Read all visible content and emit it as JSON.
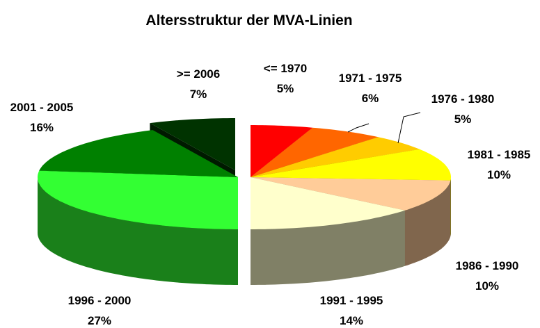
{
  "chart_data": {
    "type": "pie",
    "title": "Altersstruktur der MVA-Linien",
    "categories": [
      "<= 1970",
      "1971 - 1975",
      "1976 - 1980",
      "1981 - 1985",
      "1986 - 1990",
      "1991 - 1995",
      "1996 - 2000",
      "2001 - 2005",
      ">= 2006"
    ],
    "values": [
      5,
      6,
      5,
      10,
      10,
      14,
      27,
      16,
      7
    ],
    "value_labels": [
      "5%",
      "6%",
      "5%",
      "10%",
      "10%",
      "14%",
      "27%",
      "16%",
      "7%"
    ],
    "colors": [
      "#ff0000",
      "#ff6600",
      "#ffcc00",
      "#ffff00",
      "#ffcc99",
      "#ffffcc",
      "#33ff33",
      "#008000",
      "#003300"
    ]
  }
}
